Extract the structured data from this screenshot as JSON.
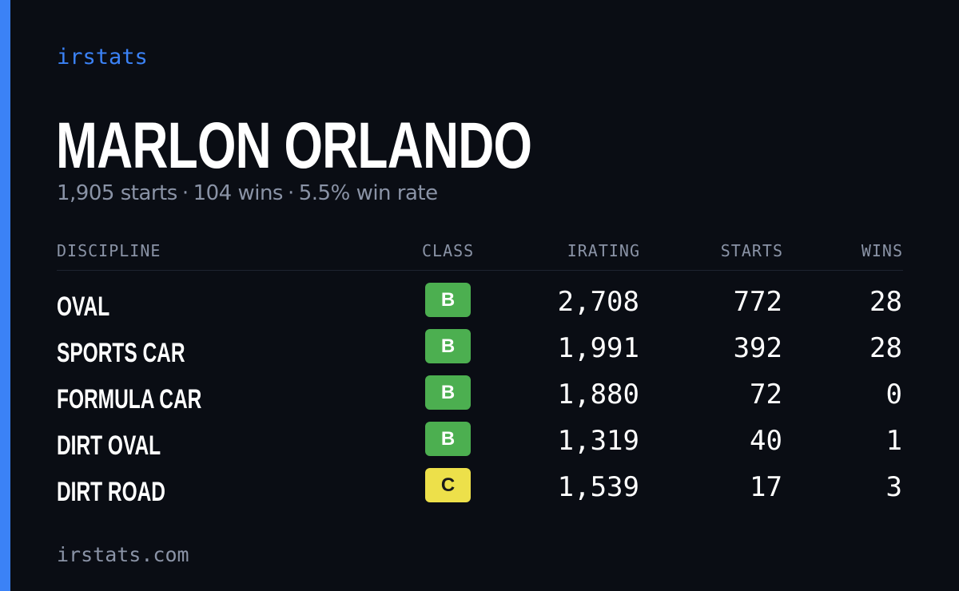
{
  "brand": "irstats",
  "driver": {
    "name": "MARLON ORLANDO"
  },
  "summary": {
    "starts": "1,905 starts",
    "wins": "104 wins",
    "win_rate": "5.5% win rate",
    "separator": "·"
  },
  "table": {
    "columns": {
      "discipline": "DISCIPLINE",
      "class": "CLASS",
      "irating": "IRATING",
      "starts": "STARTS",
      "wins": "WINS"
    },
    "rows": [
      {
        "discipline": "OVAL",
        "class": "B",
        "irating": "2,708",
        "starts": "772",
        "wins": "28"
      },
      {
        "discipline": "SPORTS CAR",
        "class": "B",
        "irating": "1,991",
        "starts": "392",
        "wins": "28"
      },
      {
        "discipline": "FORMULA CAR",
        "class": "B",
        "irating": "1,880",
        "starts": "72",
        "wins": "0"
      },
      {
        "discipline": "DIRT OVAL",
        "class": "B",
        "irating": "1,319",
        "starts": "40",
        "wins": "1"
      },
      {
        "discipline": "DIRT ROAD",
        "class": "C",
        "irating": "1,539",
        "starts": "17",
        "wins": "3"
      }
    ]
  },
  "footer": "irstats.com",
  "colors": {
    "background": "#0a0d14",
    "accent": "#3b82f6",
    "muted": "#8a93a6",
    "class_b": "#4caf50",
    "class_c": "#ede04a"
  }
}
